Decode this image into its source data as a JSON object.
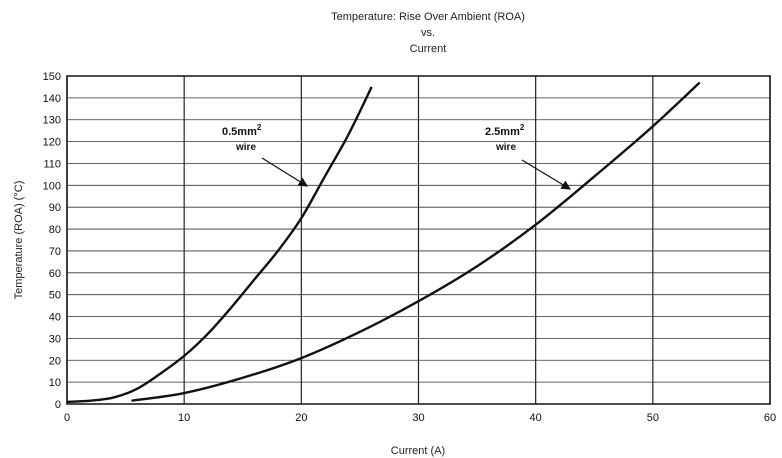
{
  "chart_data": {
    "type": "line",
    "title_lines": [
      "Temperature: Rise Over Ambient (ROA)",
      "vs.",
      "Current"
    ],
    "xlabel": "Current (A)",
    "ylabel": "Temperature (ROA) (°C)",
    "xlim": [
      0,
      60
    ],
    "ylim": [
      0,
      150
    ],
    "x_ticks": [
      0,
      10,
      20,
      30,
      40,
      50,
      60
    ],
    "y_ticks": [
      0,
      10,
      20,
      30,
      40,
      50,
      60,
      70,
      80,
      90,
      100,
      110,
      120,
      130,
      140,
      150
    ],
    "grid": true,
    "series": [
      {
        "name": "0.5mm² wire",
        "x": [
          0,
          2,
          4,
          6,
          8,
          10,
          12,
          14,
          16,
          18,
          20,
          22,
          24,
          26
        ],
        "y": [
          1,
          1.5,
          3,
          7,
          14,
          22,
          32,
          44,
          57,
          70,
          85,
          104,
          123,
          145
        ]
      },
      {
        "name": "2.5mm² wire",
        "x": [
          5.5,
          10,
          15,
          20,
          25,
          30,
          35,
          40,
          45,
          50,
          54
        ],
        "y": [
          1.5,
          5,
          12,
          21,
          33,
          47,
          63,
          82,
          104,
          127,
          147
        ]
      }
    ],
    "annotations": [
      {
        "line1": "0.5mm",
        "sup": "2",
        "line2": "wire"
      },
      {
        "line1": "2.5mm",
        "sup": "2",
        "line2": "wire"
      }
    ]
  }
}
